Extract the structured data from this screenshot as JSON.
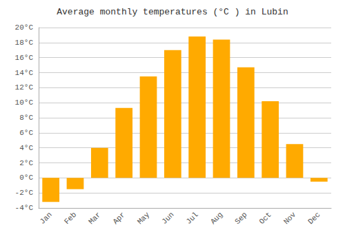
{
  "chart_data": {
    "type": "bar",
    "title": "Average monthly temperatures (°C ) in Lubin",
    "categories": [
      "Jan",
      "Feb",
      "Mar",
      "Apr",
      "May",
      "Jun",
      "Jul",
      "Aug",
      "Sep",
      "Oct",
      "Nov",
      "Dec"
    ],
    "values": [
      -3.2,
      -1.5,
      4.0,
      9.3,
      13.5,
      17.0,
      18.8,
      18.4,
      14.7,
      10.2,
      4.5,
      -0.5
    ],
    "color": "#FFAA00",
    "ylim": [
      -4,
      20
    ],
    "yticks": [
      {
        "value": -4,
        "label": "-4°C"
      },
      {
        "value": -2,
        "label": "-2°C"
      },
      {
        "value": 0,
        "label": "0°C"
      },
      {
        "value": 2,
        "label": "2°C"
      },
      {
        "value": 4,
        "label": "4°C"
      },
      {
        "value": 6,
        "label": "6°C"
      },
      {
        "value": 8,
        "label": "8°C"
      },
      {
        "value": 10,
        "label": "10°C"
      },
      {
        "value": 12,
        "label": "12°C"
      },
      {
        "value": 14,
        "label": "14°C"
      },
      {
        "value": 16,
        "label": "16°C"
      },
      {
        "value": 18,
        "label": "18°C"
      },
      {
        "value": 20,
        "label": "20°C"
      }
    ],
    "grid": true
  }
}
